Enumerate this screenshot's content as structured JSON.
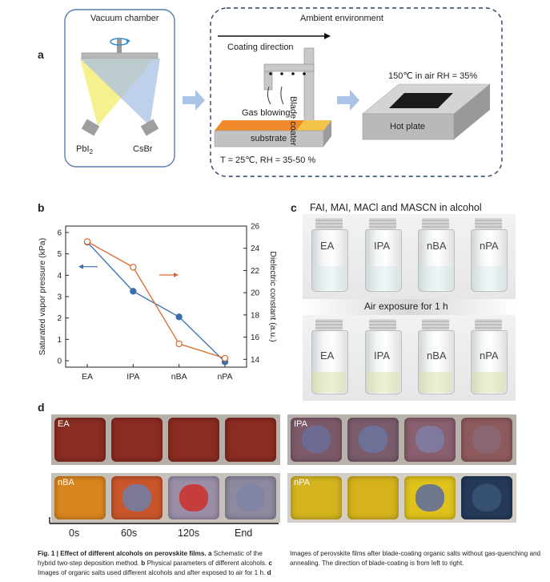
{
  "panel_a": {
    "letter": "a",
    "vacuum_chamber": "Vacuum chamber",
    "source_left": "PbI",
    "source_left_sub": "2",
    "source_right": "CsBr",
    "ambient": "Ambient environment",
    "coating_direction": "Coating direction",
    "blade_coater": "Blade coater",
    "gas_blowing": "Gas blowing",
    "substrate": "substrate",
    "conditions": "T = 25℃, RH = 35-50 %",
    "anneal": "150℃ in air RH = 35%",
    "hot_plate": "Hot plate",
    "colors": {
      "yellow": "#f3ef7a",
      "blue": "#a9c0e4",
      "arrow": "#a9c4e6",
      "substrate": "#f08a2a"
    }
  },
  "panel_b": {
    "letter": "b"
  },
  "chart_data": {
    "type": "line",
    "categories": [
      "EA",
      "IPA",
      "nBA",
      "nPA"
    ],
    "series": [
      {
        "name": "Saturated vapor pressure (kPa)",
        "axis": "left",
        "color": "#3a6fae",
        "marker": "filled-circle",
        "values": [
          5.55,
          3.25,
          2.05,
          -0.05
        ]
      },
      {
        "name": "Dielectric constant (a.u.)",
        "axis": "right",
        "color": "#d9682e",
        "marker": "open-circle",
        "values": [
          24.6,
          22.3,
          15.4,
          14.1
        ]
      }
    ],
    "ylabel": "Saturated vapor pressure (kPa)",
    "y2label": "Dielectric constant (a.u.)",
    "ylim": [
      -0.3,
      6.3
    ],
    "y2lim": [
      13.3,
      26.0
    ],
    "yticks": [
      "0",
      "1",
      "2",
      "3",
      "4",
      "5",
      "6"
    ],
    "y2ticks": [
      "14",
      "16",
      "18",
      "20",
      "22",
      "24",
      "26"
    ]
  },
  "panel_c": {
    "letter": "c",
    "title": "FAI, MAI, MACl and MASCN in alcohol",
    "exposure": "Air exposure for 1 h",
    "vials": [
      "EA",
      "IPA",
      "nBA",
      "nPA"
    ]
  },
  "panel_d": {
    "letter": "d",
    "groups": [
      "EA",
      "IPA",
      "nBA",
      "nPA"
    ],
    "times": [
      "0s",
      "60s",
      "120s",
      "End"
    ]
  },
  "caption": {
    "fig": "Fig. 1 | Effect of different alcohols on perovskite films.",
    "a_bold": "a",
    "a_text": "Schematic of the hybrid two-step deposition method.",
    "b_bold": "b",
    "b_text": "Physical parameters of different alcohols.",
    "c_bold": "c",
    "c_text": "Images of organic salts used different alcohols and after exposed to air for 1 h.",
    "d_bold": "d",
    "d_text": "Images of perovskite films after blade-coating organic salts without gas-quenching and annealing. The direction of blade-coating is from left to right."
  }
}
